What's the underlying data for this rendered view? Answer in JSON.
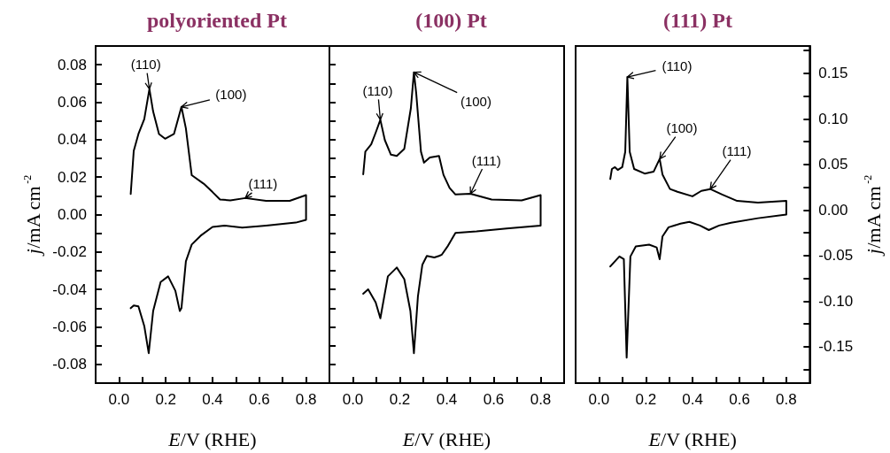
{
  "chart_data": [
    {
      "type": "line",
      "title": "polyoriented Pt",
      "xlabel": "E/V (RHE)",
      "ylabel": "j/mA cm$^{-2}$",
      "grid": false,
      "marker": "none",
      "line_style": "solid",
      "xlim": [
        -0.1,
        0.9
      ],
      "xticks": [
        {
          "value": 0,
          "label": "0.0"
        },
        {
          "value": 0.1,
          "label": null
        },
        0.2,
        {
          "value": 0.3,
          "label": null
        },
        0.4,
        {
          "value": 0.5,
          "label": null
        },
        0.6,
        {
          "value": 0.7,
          "label": null
        },
        0.8
      ],
      "ylim": [
        -0.09,
        0.09
      ],
      "yticks": [
        -0.08,
        {
          "value": -0.07,
          "label": null
        },
        -0.06,
        {
          "value": -0.05,
          "label": null
        },
        -0.04,
        {
          "value": -0.03,
          "label": null
        },
        -0.02,
        {
          "value": -0.01,
          "label": null
        },
        {
          "value": 0,
          "label": "0.00"
        },
        {
          "value": 0.01,
          "label": null
        },
        0.02,
        {
          "value": 0.03,
          "label": null
        },
        0.04,
        {
          "value": 0.05,
          "label": null
        },
        0.06,
        {
          "value": 0.07,
          "label": null
        },
        0.08
      ],
      "series": [
        {
          "color": "#000000",
          "x": [
            0.05,
            0.063,
            0.083,
            0.108,
            0.13,
            0.146,
            0.171,
            0.197,
            0.235,
            0.267,
            0.286,
            0.311,
            0.362,
            0.4,
            0.432,
            0.476,
            0.54,
            0.629,
            0.73,
            0.8,
            0.8,
            0.756,
            0.629,
            0.527,
            0.451,
            0.4,
            0.349,
            0.311,
            0.286,
            0.267,
            0.26,
            0.241,
            0.21,
            0.178,
            0.146,
            0.127,
            0.108,
            0.083,
            0.063,
            0.05
          ],
          "values": [
            0.011,
            0.034,
            0.043,
            0.051,
            0.067,
            0.055,
            0.043,
            0.0405,
            0.043,
            0.0575,
            0.046,
            0.021,
            0.0165,
            0.012,
            0.008,
            0.0076,
            0.0088,
            0.0073,
            0.0073,
            0.0104,
            -0.0028,
            -0.0043,
            -0.0059,
            -0.007,
            -0.0059,
            -0.0066,
            -0.0113,
            -0.016,
            -0.025,
            -0.05,
            -0.0515,
            -0.0407,
            -0.033,
            -0.036,
            -0.0515,
            -0.074,
            -0.0595,
            -0.049,
            -0.0485,
            -0.05
          ]
        }
      ],
      "annotations": [
        {
          "text": "(110)",
          "x": 0.13,
          "y": 0.067
        },
        {
          "text": "(100)",
          "x": 0.267,
          "y": 0.0575
        },
        {
          "text": "(111)",
          "x": 0.54,
          "y": 0.0088
        }
      ]
    },
    {
      "type": "line",
      "title": "(100) Pt",
      "xlabel": "E/V (RHE)",
      "grid": false,
      "marker": "none",
      "line_style": "solid",
      "tick_labels": "x",
      "xlim": [
        -0.1,
        0.9
      ],
      "xticks": [
        {
          "value": 0,
          "label": "0.0"
        },
        {
          "value": 0.1,
          "label": null
        },
        0.2,
        {
          "value": 0.3,
          "label": null
        },
        0.4,
        {
          "value": 0.5,
          "label": null
        },
        0.6,
        {
          "value": 0.7,
          "label": null
        },
        0.8
      ],
      "ylim": [
        -0.09,
        0.09
      ],
      "yticks": [
        {
          "value": -0.08,
          "label": null
        },
        {
          "value": -0.07,
          "label": null
        },
        {
          "value": -0.06,
          "label": null
        },
        {
          "value": -0.05,
          "label": null
        },
        {
          "value": -0.04,
          "label": null
        },
        {
          "value": -0.03,
          "label": null
        },
        {
          "value": -0.02,
          "label": null
        },
        {
          "value": -0.01,
          "label": null
        },
        {
          "value": 0,
          "label": null
        },
        {
          "value": 0.01,
          "label": null
        },
        {
          "value": 0.02,
          "label": null
        },
        {
          "value": 0.03,
          "label": null
        },
        {
          "value": 0.04,
          "label": null
        },
        {
          "value": 0.05,
          "label": null
        },
        {
          "value": 0.06,
          "label": null
        },
        {
          "value": 0.07,
          "label": null
        },
        {
          "value": 0.08,
          "label": null
        }
      ],
      "series": [
        {
          "color": "#000000",
          "x": [
            0.044,
            0.053,
            0.078,
            0.097,
            0.117,
            0.136,
            0.162,
            0.187,
            0.219,
            0.247,
            0.26,
            0.27,
            0.29,
            0.303,
            0.328,
            0.367,
            0.386,
            0.412,
            0.437,
            0.501,
            0.591,
            0.719,
            0.8,
            0.8,
            0.655,
            0.527,
            0.437,
            0.405,
            0.379,
            0.367,
            0.347,
            0.315,
            0.296,
            0.277,
            0.26,
            0.245,
            0.219,
            0.187,
            0.149,
            0.117,
            0.097,
            0.065,
            0.044
          ],
          "values": [
            0.0215,
            0.0336,
            0.0375,
            0.0437,
            0.0506,
            0.0398,
            0.032,
            0.0313,
            0.0351,
            0.0568,
            0.076,
            0.0645,
            0.0336,
            0.0277,
            0.0305,
            0.0313,
            0.0212,
            0.0142,
            0.0107,
            0.0111,
            0.008,
            0.0076,
            0.0104,
            -0.0059,
            -0.0074,
            -0.009,
            -0.0098,
            -0.0167,
            -0.0214,
            -0.0221,
            -0.0229,
            -0.0221,
            -0.0268,
            -0.0438,
            -0.074,
            -0.0515,
            -0.0345,
            -0.0283,
            -0.033,
            -0.0554,
            -0.0469,
            -0.0399,
            -0.0423
          ]
        }
      ],
      "annotations": [
        {
          "text": "(110)",
          "x": 0.117,
          "y": 0.0506
        },
        {
          "text": "(100)",
          "x": 0.26,
          "y": 0.076
        },
        {
          "text": "(111)",
          "x": 0.501,
          "y": 0.0111
        }
      ]
    },
    {
      "type": "line",
      "title": "(111) Pt",
      "xlabel": "E/V (RHE)",
      "ylabel": "j/mA cm$^{-2}$",
      "grid": false,
      "marker": "none",
      "line_style": "solid",
      "xlim": [
        -0.1,
        0.9
      ],
      "xticks": [
        {
          "value": 0,
          "label": "0.0"
        },
        {
          "value": 0.1,
          "label": null
        },
        0.2,
        {
          "value": 0.3,
          "label": null
        },
        0.4,
        {
          "value": 0.5,
          "label": null
        },
        0.6,
        {
          "value": 0.7,
          "label": null
        },
        0.8
      ],
      "ylim": [
        -0.19,
        0.18
      ],
      "yticks": [
        {
          "value": -0.175,
          "label": null
        },
        -0.15,
        {
          "value": -0.125,
          "label": null
        },
        {
          "value": -0.1,
          "label": "-0.10"
        },
        {
          "value": -0.075,
          "label": null
        },
        -0.05,
        {
          "value": -0.025,
          "label": null
        },
        {
          "value": 0,
          "label": "0.00"
        },
        {
          "value": 0.025,
          "label": null
        },
        0.05,
        {
          "value": 0.075,
          "label": null
        },
        {
          "value": 0.1,
          "label": "0.10"
        },
        {
          "value": 0.125,
          "label": null
        },
        0.15,
        {
          "value": 0.175,
          "label": null
        }
      ],
      "series": [
        {
          "color": "#000000",
          "x": [
            0.048,
            0.055,
            0.068,
            0.08,
            0.099,
            0.112,
            0.121,
            0.131,
            0.15,
            0.195,
            0.233,
            0.259,
            0.271,
            0.303,
            0.335,
            0.399,
            0.437,
            0.475,
            0.526,
            0.59,
            0.679,
            0.8,
            0.8,
            0.679,
            0.564,
            0.513,
            0.469,
            0.431,
            0.386,
            0.348,
            0.297,
            0.271,
            0.259,
            0.246,
            0.214,
            0.157,
            0.134,
            0.118,
            0.106,
            0.087,
            0.048
          ],
          "values": [
            0.034,
            0.045,
            0.047,
            0.044,
            0.047,
            0.064,
            0.146,
            0.064,
            0.045,
            0.04,
            0.042,
            0.056,
            0.039,
            0.023,
            0.02,
            0.015,
            0.021,
            0.023,
            0.017,
            0.01,
            0.008,
            0.01,
            -0.005,
            -0.009,
            -0.014,
            -0.017,
            -0.022,
            -0.017,
            -0.013,
            -0.015,
            -0.019,
            -0.029,
            -0.054,
            -0.041,
            -0.038,
            -0.04,
            -0.051,
            -0.162,
            -0.054,
            -0.051,
            -0.062
          ]
        }
      ],
      "annotations": [
        {
          "text": "(110)",
          "x": 0.121,
          "y": 0.146
        },
        {
          "text": "(100)",
          "x": 0.259,
          "y": 0.056
        },
        {
          "text": "(111)",
          "x": 0.475,
          "y": 0.023
        }
      ]
    }
  ]
}
